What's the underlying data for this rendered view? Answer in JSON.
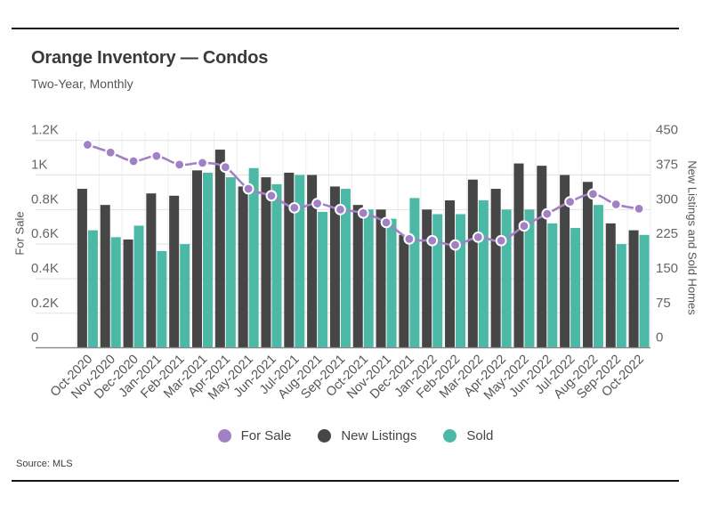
{
  "page": {
    "title": "Orange Inventory — Condos",
    "subtitle": "Two-Year, Monthly",
    "source": "Source: MLS"
  },
  "legend": [
    {
      "label": "For Sale",
      "color": "#a181c4"
    },
    {
      "label": "New Listings",
      "color": "#464646"
    },
    {
      "label": "Sold",
      "color": "#4cb9a6"
    }
  ],
  "chart_data": {
    "type": "combo",
    "title": "Orange Inventory — Condos",
    "subtitle": "Two-Year, Monthly",
    "grid": "horizontal-and-month-separators",
    "legend_position": "bottom",
    "categories": [
      "Oct-2020",
      "Nov-2020",
      "Dec-2020",
      "Jan-2021",
      "Feb-2021",
      "Mar-2021",
      "Apr-2021",
      "May-2021",
      "Jun-2021",
      "Jul-2021",
      "Aug-2021",
      "Sep-2021",
      "Oct-2021",
      "Nov-2021",
      "Dec-2021",
      "Jan-2022",
      "Feb-2022",
      "Mar-2022",
      "Apr-2022",
      "May-2022",
      "Jun-2022",
      "Jul-2022",
      "Aug-2022",
      "Sep-2022",
      "Oct-2022"
    ],
    "left_axis": {
      "title": "For Sale",
      "min": 0,
      "max": 1200,
      "tick_labels": [
        "0",
        "0.2K",
        "0.4K",
        "0.6K",
        "0.8K",
        "1K",
        "1.2K"
      ]
    },
    "right_axis": {
      "title": "New Listings and Sold Homes",
      "min": 0,
      "max": 450,
      "tick_labels": [
        "0",
        "75",
        "150",
        "225",
        "300",
        "375",
        "450"
      ]
    },
    "series": [
      {
        "name": "For Sale",
        "type": "line",
        "axis": "left",
        "color": "#a181c4",
        "values": [
          1175,
          1130,
          1080,
          1110,
          1060,
          1070,
          1045,
          920,
          880,
          810,
          835,
          800,
          780,
          725,
          630,
          620,
          595,
          640,
          620,
          705,
          775,
          845,
          890,
          830,
          805
        ]
      },
      {
        "name": "New Listings",
        "type": "bar",
        "axis": "right",
        "color": "#464646",
        "values": [
          345,
          310,
          235,
          335,
          330,
          385,
          430,
          350,
          370,
          380,
          375,
          350,
          310,
          300,
          245,
          300,
          320,
          365,
          345,
          400,
          395,
          375,
          360,
          270,
          255
        ]
      },
      {
        "name": "Sold",
        "type": "bar",
        "axis": "right",
        "color": "#4cb9a6",
        "values": [
          255,
          240,
          265,
          210,
          225,
          380,
          370,
          390,
          355,
          375,
          295,
          345,
          300,
          280,
          325,
          290,
          290,
          320,
          300,
          300,
          270,
          260,
          310,
          225,
          245
        ]
      }
    ]
  }
}
